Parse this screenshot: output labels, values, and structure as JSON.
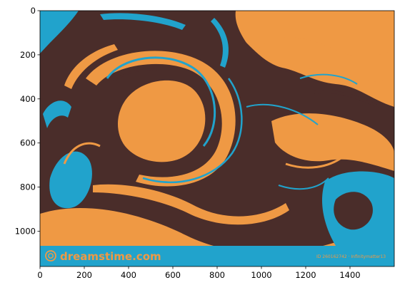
{
  "image": {
    "subject": "marbled paint swirls",
    "colors": {
      "brown": "#4a2d2a",
      "orange": "#ef9944",
      "blue": "#21a3cc"
    }
  },
  "axes": {
    "x_ticks": [
      "0",
      "200",
      "400",
      "600",
      "800",
      "1000",
      "1200",
      "1400"
    ],
    "y_ticks": [
      "0",
      "200",
      "400",
      "600",
      "800",
      "1000"
    ],
    "x_range": [
      0,
      1600
    ],
    "y_range": [
      1160,
      0
    ]
  },
  "watermark": {
    "brand": "dreamstime.com",
    "id_text": "ID 260162742 · Infinitymatter13",
    "bar_color": "#21a3cc",
    "text_color": "#ef9944"
  }
}
